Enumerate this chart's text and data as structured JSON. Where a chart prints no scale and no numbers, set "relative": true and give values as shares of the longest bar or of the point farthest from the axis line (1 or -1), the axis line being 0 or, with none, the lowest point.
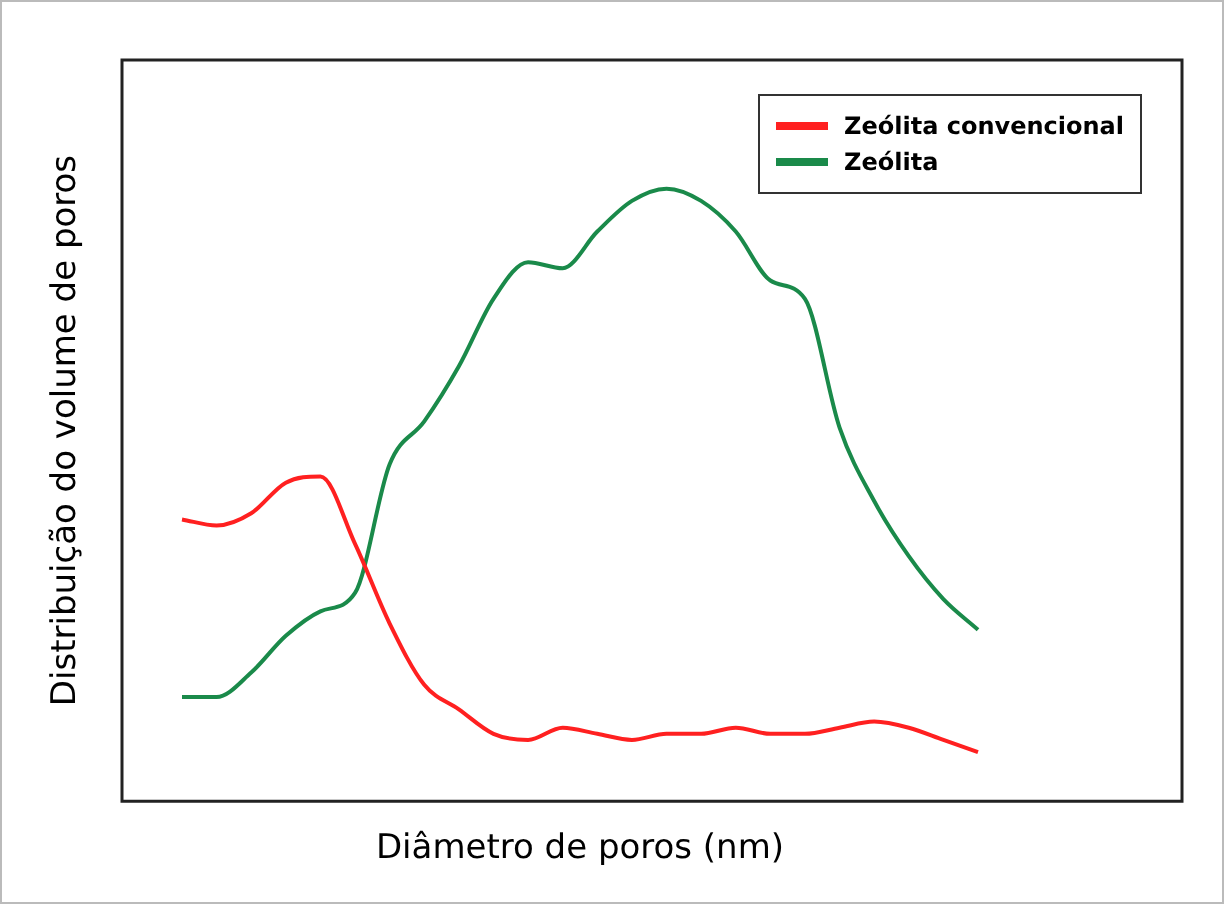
{
  "chart_data": {
    "type": "line",
    "relative": true,
    "xlabel": "Diâmetro de poros (nm)",
    "ylabel": "Distribuição do volume de poros",
    "categories": [
      null,
      null,
      null,
      null,
      null,
      null,
      null,
      null,
      null,
      null,
      null,
      null,
      null,
      null,
      null,
      null,
      null,
      null,
      null,
      null,
      null,
      null,
      null,
      null
    ],
    "legend": "top right",
    "grid": false,
    "marker": "none",
    "line_style": "solid",
    "series": [
      {
        "name": "Zeólita convencional",
        "color": "#ff2020",
        "values": [
          0.46,
          0.45,
          0.47,
          0.52,
          0.53,
          0.42,
          0.29,
          0.19,
          0.15,
          0.11,
          0.1,
          0.12,
          0.11,
          0.1,
          0.11,
          0.11,
          0.12,
          0.11,
          0.11,
          0.12,
          0.13,
          0.12,
          0.1,
          0.08
        ]
      },
      {
        "name": "Zeólita",
        "color": "#1a8a4a",
        "values": [
          0.17,
          0.17,
          0.21,
          0.27,
          0.31,
          0.34,
          0.55,
          0.62,
          0.71,
          0.82,
          0.88,
          0.87,
          0.93,
          0.98,
          1,
          0.98,
          0.93,
          0.85,
          0.82,
          0.61,
          0.49,
          0.4,
          0.33,
          0.28
        ]
      }
    ]
  }
}
